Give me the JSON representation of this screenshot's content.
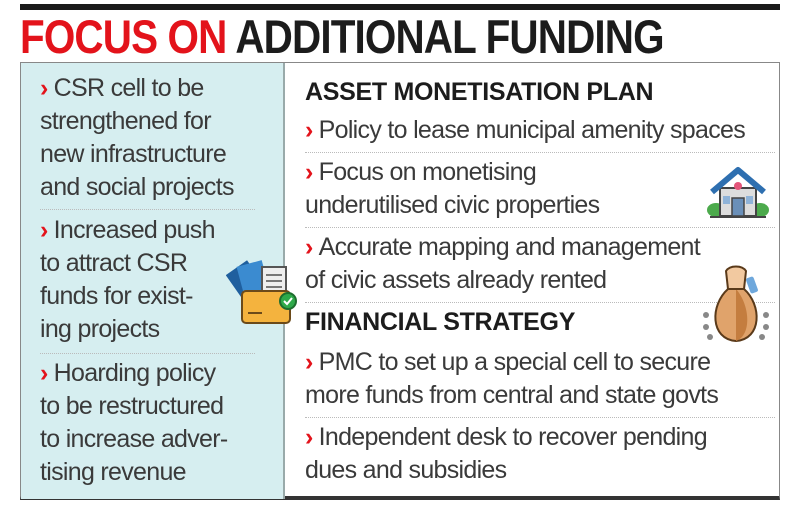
{
  "title": {
    "highlight": "FOCUS ON",
    "rest": "ADDITIONAL FUNDING"
  },
  "left_items": [
    {
      "lines": [
        "CSR cell to be",
        "strengthened for",
        "new infrastructure",
        "and social projects"
      ]
    },
    {
      "lines": [
        "Increased push",
        "to attract CSR",
        "funds for exist-",
        "ing projects"
      ]
    },
    {
      "lines": [
        "Hoarding policy",
        "to be restructured",
        "to increase adver-",
        "tising revenue"
      ]
    }
  ],
  "sections": [
    {
      "heading": "ASSET MONETISATION PLAN",
      "items": [
        {
          "lines": [
            "Policy to lease municipal amenity spaces"
          ]
        },
        {
          "lines": [
            "Focus on monetising",
            "underutilised civic properties"
          ]
        },
        {
          "lines": [
            "Accurate mapping and management",
            "of civic assets already rented"
          ]
        }
      ]
    },
    {
      "heading": "FINANCIAL STRATEGY",
      "items": [
        {
          "lines": [
            "PMC to set up a special cell to secure",
            "more funds from central and state govts"
          ]
        },
        {
          "lines": [
            "Independent desk to recover pending",
            "dues and subsidies"
          ]
        }
      ]
    }
  ],
  "bullet_glyph": "›",
  "icons": [
    "folder-document-check-icon",
    "house-icon",
    "money-bag-icon"
  ],
  "colors": {
    "accent": "#e3131b",
    "panel": "#d6eef0",
    "text": "#3a3a3a"
  }
}
